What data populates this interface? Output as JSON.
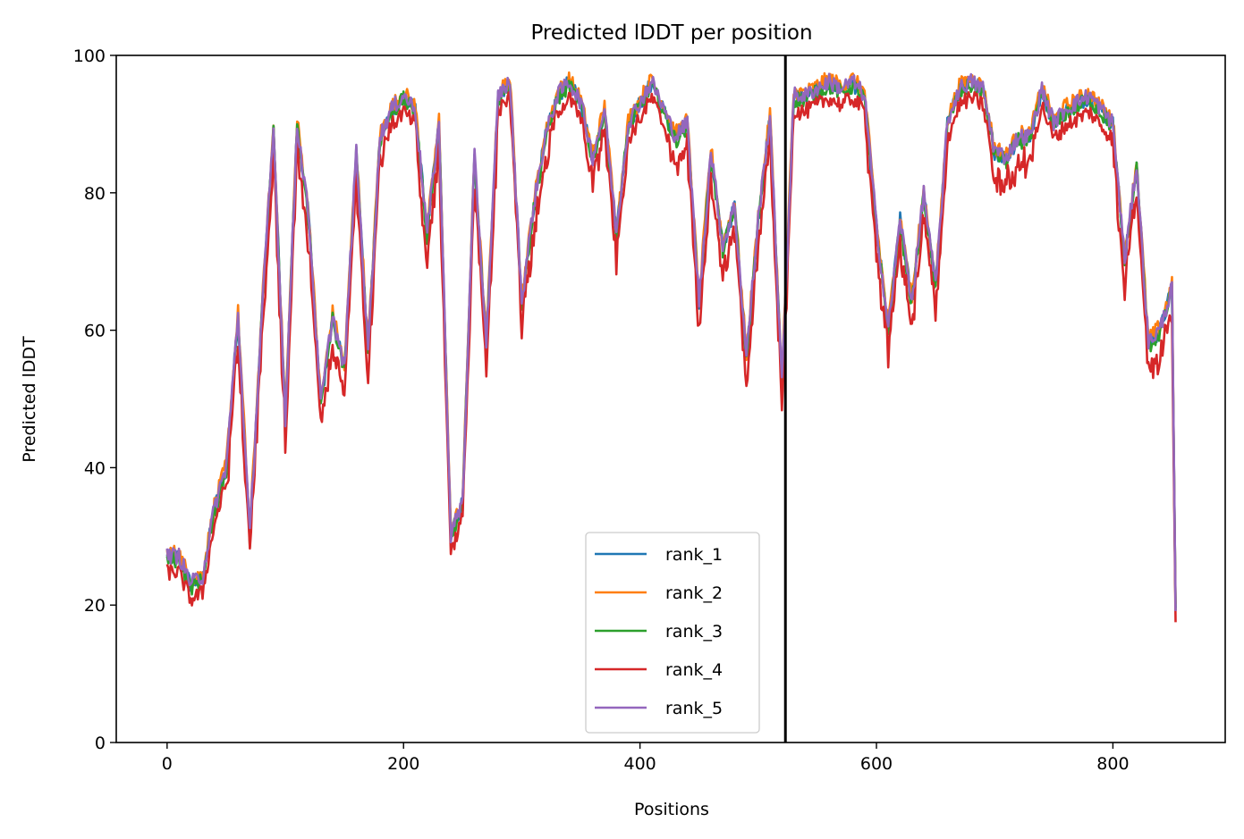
{
  "chart_data": {
    "type": "line",
    "title": "Predicted lDDT per position",
    "xlabel": "Positions",
    "ylabel": "Predicted lDDT",
    "xlim": [
      -43,
      895
    ],
    "ylim": [
      0,
      100
    ],
    "xticks": [
      0,
      200,
      400,
      600,
      800
    ],
    "yticks": [
      0,
      20,
      40,
      60,
      80,
      100
    ],
    "vline_x": 523,
    "grid": false,
    "legend_position": "lower-center",
    "anchors": {
      "x": [
        0,
        10,
        20,
        30,
        40,
        50,
        60,
        70,
        80,
        90,
        100,
        110,
        120,
        130,
        140,
        150,
        160,
        170,
        180,
        190,
        200,
        210,
        220,
        230,
        240,
        250,
        260,
        270,
        280,
        290,
        300,
        310,
        320,
        330,
        340,
        350,
        360,
        370,
        380,
        390,
        400,
        410,
        420,
        430,
        440,
        450,
        460,
        470,
        480,
        490,
        500,
        510,
        520,
        530,
        540,
        550,
        560,
        570,
        580,
        590,
        600,
        610,
        620,
        630,
        640,
        650,
        660,
        670,
        680,
        690,
        700,
        710,
        720,
        730,
        740,
        750,
        760,
        770,
        780,
        790,
        800,
        810,
        820,
        830,
        840,
        850,
        853
      ],
      "y": [
        27,
        27,
        23,
        24,
        34,
        40,
        62,
        30,
        62,
        89,
        47,
        90,
        76,
        49,
        62,
        54,
        86,
        57,
        88,
        92,
        94,
        92,
        74,
        90,
        30,
        35,
        85,
        58,
        94,
        96,
        64,
        78,
        88,
        94,
        96,
        93,
        85,
        92,
        74,
        90,
        93,
        96,
        92,
        88,
        90,
        64,
        86,
        72,
        78,
        56,
        76,
        91,
        52,
        94,
        94,
        95,
        96,
        95,
        96,
        94,
        75,
        60,
        76,
        64,
        80,
        66,
        90,
        95,
        96,
        95,
        86,
        85,
        88,
        88,
        95,
        90,
        92,
        93,
        94,
        92,
        90,
        70,
        84,
        58,
        60,
        66,
        19
      ]
    },
    "series": [
      {
        "name": "rank_1",
        "color": "#1f77b4"
      },
      {
        "name": "rank_2",
        "color": "#ff7f0e"
      },
      {
        "name": "rank_3",
        "color": "#2ca02c"
      },
      {
        "name": "rank_4",
        "color": "#d62728"
      },
      {
        "name": "rank_5",
        "color": "#9467bd"
      }
    ]
  }
}
